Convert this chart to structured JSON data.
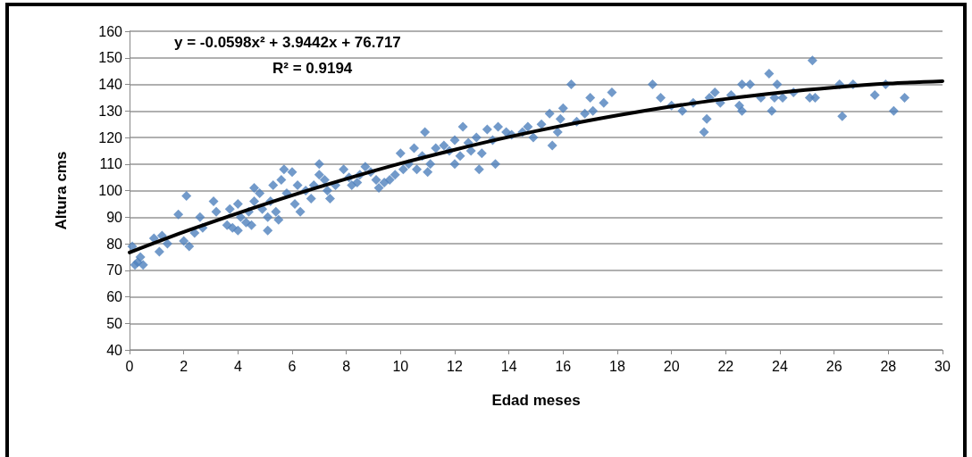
{
  "chart_data": {
    "type": "scatter",
    "xlabel": "Edad meses",
    "ylabel": "Altura cms",
    "annotations": [
      "y = -0.0598x² + 3.9442x + 76.717",
      "R² = 0.9194"
    ],
    "xlim": [
      0,
      30
    ],
    "xticks": [
      0,
      2,
      4,
      6,
      8,
      10,
      12,
      14,
      16,
      18,
      20,
      22,
      24,
      26,
      28,
      30
    ],
    "ylim": [
      40,
      160
    ],
    "yticks": [
      40,
      50,
      60,
      70,
      80,
      90,
      100,
      110,
      120,
      130,
      140,
      150,
      160
    ],
    "grid": "y",
    "marker": "diamond",
    "series": [
      {
        "color": "#4f81bd",
        "x": [
          0.1,
          0.2,
          0.3,
          0.4,
          0.5,
          0.9,
          1.1,
          1.2,
          1.4,
          1.8,
          2.0,
          2.1,
          2.2,
          2.4,
          2.6,
          2.7,
          3.1,
          3.2,
          3.6,
          3.7,
          3.8,
          4.0,
          4.0,
          4.1,
          4.3,
          4.4,
          4.5,
          4.6,
          4.6,
          4.8,
          4.9,
          5.1,
          5.1,
          5.2,
          5.3,
          5.4,
          5.5,
          5.6,
          5.7,
          5.8,
          6.0,
          6.1,
          6.2,
          6.3,
          6.5,
          6.7,
          6.8,
          7.0,
          7.0,
          7.2,
          7.3,
          7.4,
          7.6,
          7.9,
          8.1,
          8.2,
          8.4,
          8.5,
          8.7,
          8.9,
          9.1,
          9.2,
          9.4,
          9.6,
          9.8,
          10.0,
          10.1,
          10.3,
          10.5,
          10.6,
          10.8,
          10.9,
          11.0,
          11.1,
          11.3,
          11.6,
          11.8,
          12.0,
          12.0,
          12.2,
          12.3,
          12.5,
          12.6,
          12.8,
          12.9,
          13.0,
          13.2,
          13.4,
          13.5,
          13.6,
          13.9,
          14.1,
          14.5,
          14.7,
          14.9,
          15.2,
          15.5,
          15.6,
          15.8,
          15.9,
          16.0,
          16.3,
          16.5,
          16.8,
          17.0,
          17.1,
          17.5,
          17.8,
          19.3,
          19.6,
          20.0,
          20.4,
          20.8,
          21.2,
          21.3,
          21.4,
          21.6,
          21.8,
          22.2,
          22.5,
          22.6,
          22.6,
          22.9,
          23.3,
          23.6,
          23.7,
          23.8,
          23.9,
          24.1,
          24.5,
          25.1,
          25.2,
          25.3,
          26.2,
          26.3,
          26.7,
          27.5,
          27.9,
          28.2,
          28.6
        ],
        "values": [
          79,
          72,
          73,
          75,
          72,
          82,
          77,
          83,
          80,
          91,
          81,
          98,
          79,
          84,
          90,
          86,
          96,
          92,
          87,
          93,
          86,
          95,
          85,
          90,
          88,
          92,
          87,
          101,
          96,
          99,
          93,
          85,
          90,
          96,
          102,
          92,
          89,
          104,
          108,
          99,
          107,
          95,
          102,
          92,
          100,
          97,
          102,
          110,
          106,
          104,
          100,
          97,
          102,
          108,
          105,
          102,
          103,
          106,
          109,
          107,
          104,
          101,
          103,
          104,
          106,
          114,
          108,
          110,
          116,
          108,
          113,
          122,
          107,
          110,
          116,
          117,
          115,
          119,
          110,
          113,
          124,
          118,
          115,
          120,
          108,
          114,
          123,
          119,
          110,
          124,
          122,
          121,
          122,
          124,
          120,
          125,
          129,
          117,
          122,
          127,
          131,
          140,
          126,
          129,
          135,
          130,
          133,
          137,
          140,
          135,
          132,
          130,
          133,
          122,
          127,
          135,
          137,
          133,
          136,
          132,
          130,
          140,
          140,
          135,
          144,
          130,
          135,
          140,
          135,
          137,
          135,
          149,
          135,
          140,
          128,
          140,
          136,
          140,
          130,
          135
        ]
      },
      {
        "type": "line",
        "color": "#000000",
        "marker": "none",
        "x": [
          0,
          2,
          4,
          6,
          8,
          10,
          12,
          14,
          16,
          18,
          20,
          22,
          24,
          26,
          28,
          30
        ],
        "values": [
          76.7,
          84.4,
          91.5,
          98.2,
          104.4,
          110.2,
          115.4,
          120.2,
          124.5,
          128.3,
          131.7,
          134.5,
          136.9,
          138.8,
          140.3,
          141.2
        ]
      }
    ]
  }
}
